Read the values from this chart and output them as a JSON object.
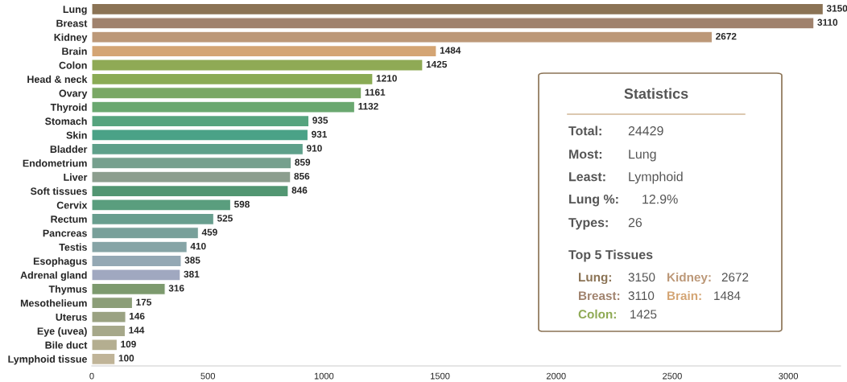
{
  "chart_data": {
    "type": "bar",
    "orientation": "horizontal",
    "categories": [
      "Lung",
      "Breast",
      "Kidney",
      "Brain",
      "Colon",
      "Head & neck",
      "Ovary",
      "Thyroid",
      "Stomach",
      "Skin",
      "Bladder",
      "Endometrium",
      "Liver",
      "Soft tissues",
      "Cervix",
      "Rectum",
      "Pancreas",
      "Testis",
      "Esophagus",
      "Adrenal gland",
      "Thymus",
      "Mesothelieum",
      "Uterus",
      "Eye (uvea)",
      "Bile duct",
      "Lymphoid tissue"
    ],
    "values": [
      3150,
      3110,
      2672,
      1484,
      1425,
      1210,
      1161,
      1132,
      935,
      931,
      910,
      859,
      856,
      846,
      598,
      525,
      459,
      410,
      385,
      381,
      316,
      175,
      146,
      144,
      109,
      100
    ],
    "colors": [
      "#8b7355",
      "#a0826d",
      "#bc9878",
      "#d4a574",
      "#8faa55",
      "#8aab55",
      "#7aa865",
      "#6aa870",
      "#56a47e",
      "#4aa287",
      "#5ea08a",
      "#76a08e",
      "#8c9e8e",
      "#529672",
      "#5a9e7e",
      "#689e8e",
      "#78a09a",
      "#86a4a6",
      "#94a8b4",
      "#a0a8c0",
      "#7d9a6e",
      "#8c9e78",
      "#9aa282",
      "#a6a88a",
      "#b4ae90",
      "#c0b498"
    ],
    "xlim": [
      0,
      3225
    ],
    "xticks": [
      0,
      500,
      1000,
      1500,
      2000,
      2500,
      3000
    ],
    "data_labels": true,
    "grid": false,
    "legend": false,
    "annotations": [
      "Statistics",
      "Total:",
      "24429",
      "Most:",
      "Lung",
      "Least:",
      "Lymphoid",
      "Lung %:",
      "12.9%",
      "Types:",
      "26",
      "Top 5 Tissues",
      "Lung:",
      "3150",
      "Kidney:",
      "2672",
      "Breast:",
      "3110",
      "Brain:",
      "1484",
      "Colon:",
      "1425"
    ]
  }
}
